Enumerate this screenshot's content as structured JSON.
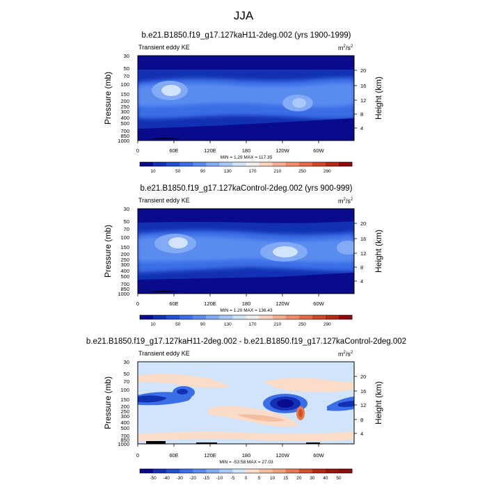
{
  "page_title": "JJA",
  "chart_data": [
    {
      "type": "heatmap",
      "title": "b.e21.B1850.f19_g17.127kaH11-2deg.002 (yrs 1900-1999)",
      "subtitle_left": "Transient eddy KE",
      "units_base": "m",
      "units_sup1": "2",
      "units_mid": "/s",
      "units_sup2": "2",
      "ylabel": "Pressure (mb)",
      "y2label": "Height (km)",
      "x_ticks": [
        "0",
        "60E",
        "120E",
        "180",
        "120W",
        "60W"
      ],
      "y_ticks": [
        "30",
        "50",
        "70",
        "100",
        "150",
        "200",
        "250",
        "300",
        "400",
        "500",
        "700",
        "850",
        "1000"
      ],
      "y2_ticks": [
        "20",
        "16",
        "12",
        "8",
        "4"
      ],
      "stats": "MIN =    1.29  MAX = 117.35",
      "min": 1.29,
      "max": 117.35,
      "colorbar_labels": [
        "10",
        "50",
        "90",
        "130",
        "170",
        "210",
        "250",
        "290"
      ],
      "colorbar_colors": [
        "#0a0a8c",
        "#1230b4",
        "#1e50d2",
        "#3a6ee6",
        "#5a8cf0",
        "#82aaf5",
        "#aac8fa",
        "#d2e4fa",
        "#f0f0f0",
        "#fad2be",
        "#f5af91",
        "#f08c69",
        "#e66946",
        "#d24628",
        "#b42814",
        "#8c0a0a"
      ]
    },
    {
      "type": "heatmap",
      "title": "b.e21.B1850.f19_g17.127kaControl-2deg.002 (yrs 900-999)",
      "subtitle_left": "Transient eddy KE",
      "units_base": "m",
      "units_sup1": "2",
      "units_mid": "/s",
      "units_sup2": "2",
      "ylabel": "Pressure (mb)",
      "y2label": "Height (km)",
      "x_ticks": [
        "0",
        "60E",
        "120E",
        "180",
        "120W",
        "60W"
      ],
      "y_ticks": [
        "30",
        "50",
        "70",
        "100",
        "150",
        "200",
        "250",
        "300",
        "400",
        "500",
        "700",
        "850",
        "1000"
      ],
      "y2_ticks": [
        "20",
        "16",
        "12",
        "8",
        "4"
      ],
      "stats": "MIN =    1.20  MAX = 136.43",
      "min": 1.2,
      "max": 136.43,
      "colorbar_labels": [
        "10",
        "50",
        "90",
        "130",
        "170",
        "210",
        "250",
        "290"
      ],
      "colorbar_colors": [
        "#0a0a8c",
        "#1230b4",
        "#1e50d2",
        "#3a6ee6",
        "#5a8cf0",
        "#82aaf5",
        "#aac8fa",
        "#d2e4fa",
        "#f0f0f0",
        "#fad2be",
        "#f5af91",
        "#f08c69",
        "#e66946",
        "#d24628",
        "#b42814",
        "#8c0a0a"
      ]
    },
    {
      "type": "heatmap",
      "title": "b.e21.B1850.f19_g17.127kaH11-2deg.002 - b.e21.B1850.f19_g17.127kaControl-2deg.002",
      "subtitle_left": "Transient eddy KE",
      "units_base": "m",
      "units_sup1": "2",
      "units_mid": "/s",
      "units_sup2": "2",
      "ylabel": "Pressure (mb)",
      "y2label": "Height (km)",
      "x_ticks": [
        "0",
        "60E",
        "120E",
        "180",
        "120W",
        "60W"
      ],
      "y_ticks": [
        "30",
        "50",
        "70",
        "100",
        "150",
        "200",
        "250",
        "300",
        "400",
        "500",
        "700",
        "850",
        "1000"
      ],
      "y2_ticks": [
        "20",
        "16",
        "12",
        "8",
        "4"
      ],
      "stats": "MIN = -53.58  MAX =  27.03",
      "min": -53.58,
      "max": 27.03,
      "colorbar_labels": [
        "-50",
        "-40",
        "-30",
        "-20",
        "-15",
        "-10",
        "-5",
        "0",
        "5",
        "10",
        "15",
        "20",
        "30",
        "40",
        "50"
      ],
      "colorbar_colors": [
        "#0a0a8c",
        "#1230b4",
        "#1e50d2",
        "#3a6ee6",
        "#5a8cf0",
        "#82aaf5",
        "#aac8fa",
        "#d2e4fa",
        "#fadcc8",
        "#f5bea0",
        "#f0a078",
        "#e67850",
        "#d25028",
        "#b42814",
        "#961408",
        "#8c0a0a"
      ]
    }
  ]
}
